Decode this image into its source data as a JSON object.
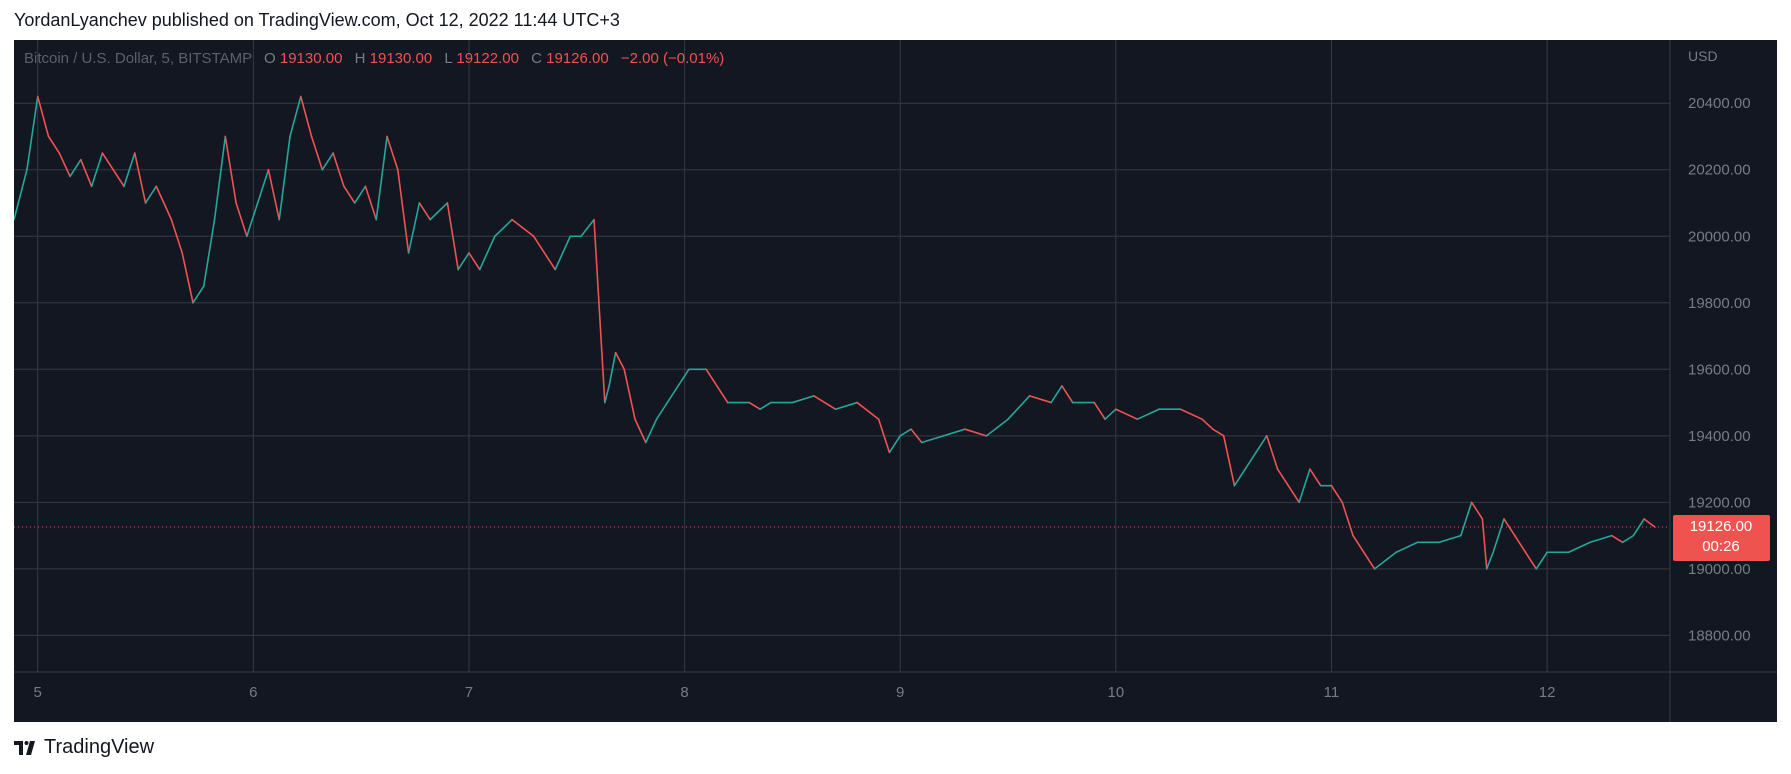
{
  "header": {
    "publish_text": "YordanLyanchev published on TradingView.com, Oct 12, 2022 11:44 UTC+3"
  },
  "legend": {
    "symbol": "Bitcoin / U.S. Dollar, 5, BITSTAMP",
    "o_label": "O",
    "o_value": "19130.00",
    "h_label": "H",
    "h_value": "19130.00",
    "l_label": "L",
    "l_value": "19122.00",
    "c_label": "C",
    "c_value": "19126.00",
    "change": "−2.00 (−0.01%)"
  },
  "price_axis": {
    "currency": "USD",
    "last_price": "19126.00",
    "countdown": "00:26"
  },
  "footer": {
    "brand": "TradingView"
  },
  "colors": {
    "background": "#131722",
    "grid": "#363a45",
    "up": "#26a69a",
    "down": "#ef5350",
    "text": "#787b86"
  },
  "chart_data": {
    "type": "line",
    "x_tick_labels": [
      "5",
      "6",
      "7",
      "8",
      "9",
      "10",
      "11",
      "12"
    ],
    "x_ticks": [
      5,
      6,
      7,
      8,
      9,
      10,
      11,
      12
    ],
    "xlim": [
      4.89,
      12.57
    ],
    "y_tick_labels": [
      "18800.00",
      "19000.00",
      "19200.00",
      "19400.00",
      "19600.00",
      "19800.00",
      "20000.00",
      "20200.00",
      "20400.00"
    ],
    "y_ticks": [
      18800,
      19000,
      19200,
      19400,
      19600,
      19800,
      20000,
      20200,
      20400
    ],
    "ylim": [
      18690,
      20590
    ],
    "last_price": 19126,
    "series": [
      {
        "x": [
          4.89,
          4.95,
          5.0,
          5.05,
          5.1,
          5.15,
          5.2,
          5.25,
          5.3,
          5.4,
          5.45,
          5.5,
          5.55,
          5.62,
          5.67,
          5.72,
          5.77,
          5.82,
          5.87,
          5.92,
          5.97,
          6.02,
          6.07,
          6.12,
          6.17,
          6.22,
          6.27,
          6.32,
          6.37,
          6.42,
          6.47,
          6.52,
          6.57,
          6.62,
          6.67,
          6.72,
          6.77,
          6.82,
          6.9,
          6.95,
          7.0,
          7.05,
          7.12,
          7.2,
          7.3,
          7.4,
          7.47,
          7.52,
          7.58,
          7.63,
          7.65,
          7.68,
          7.72,
          7.77,
          7.82,
          7.87,
          7.92,
          7.97,
          8.02,
          8.1,
          8.2,
          8.3,
          8.35,
          8.4,
          8.5,
          8.6,
          8.7,
          8.8,
          8.9,
          8.95,
          9.0,
          9.05,
          9.1,
          9.2,
          9.3,
          9.4,
          9.5,
          9.6,
          9.7,
          9.75,
          9.8,
          9.9,
          9.95,
          10.0,
          10.1,
          10.2,
          10.3,
          10.4,
          10.45,
          10.5,
          10.55,
          10.6,
          10.65,
          10.7,
          10.75,
          10.8,
          10.85,
          10.9,
          10.95,
          11.0,
          11.05,
          11.1,
          11.15,
          11.2,
          11.3,
          11.4,
          11.5,
          11.6,
          11.65,
          11.7,
          11.72,
          11.75,
          11.8,
          11.85,
          11.9,
          11.95,
          12.0,
          12.1,
          12.2,
          12.3,
          12.35,
          12.4,
          12.45,
          12.5
        ],
        "values": [
          20050,
          20200,
          20420,
          20300,
          20250,
          20180,
          20230,
          20150,
          20250,
          20150,
          20250,
          20100,
          20150,
          20050,
          19950,
          19800,
          19850,
          20050,
          20300,
          20100,
          20000,
          20100,
          20200,
          20050,
          20300,
          20420,
          20300,
          20200,
          20250,
          20150,
          20100,
          20150,
          20050,
          20300,
          20200,
          19950,
          20100,
          20050,
          20100,
          19900,
          19950,
          19900,
          20000,
          20050,
          20000,
          19900,
          20000,
          20000,
          20050,
          19500,
          19550,
          19650,
          19600,
          19450,
          19380,
          19450,
          19500,
          19550,
          19600,
          19600,
          19500,
          19500,
          19480,
          19500,
          19500,
          19520,
          19480,
          19500,
          19450,
          19350,
          19400,
          19420,
          19380,
          19400,
          19420,
          19400,
          19450,
          19520,
          19500,
          19550,
          19500,
          19500,
          19450,
          19480,
          19450,
          19480,
          19480,
          19450,
          19420,
          19400,
          19250,
          19300,
          19350,
          19400,
          19300,
          19250,
          19200,
          19300,
          19250,
          19250,
          19200,
          19100,
          19050,
          19000,
          19050,
          19080,
          19080,
          19100,
          19200,
          19150,
          19000,
          19050,
          19150,
          19100,
          19050,
          19000,
          19050,
          19050,
          19080,
          19100,
          19080,
          19100,
          19150,
          19126
        ]
      }
    ]
  }
}
